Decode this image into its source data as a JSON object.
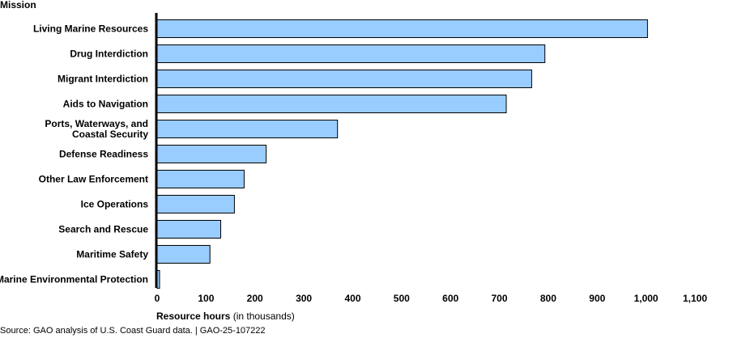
{
  "chart_data": {
    "type": "bar",
    "orientation": "horizontal",
    "categories": [
      "Living Marine Resources",
      "Drug Interdiction",
      "Migrant Interdiction",
      "Aids to Navigation",
      "Ports, Waterways, and Coastal Security",
      "Defense Readiness",
      "Other Law Enforcement",
      "Ice Operations",
      "Search and Rescue",
      "Maritime Safety",
      "Marine Environmental Protection"
    ],
    "category_label_lines": [
      [
        "Living Marine Resources"
      ],
      [
        "Drug Interdiction"
      ],
      [
        "Migrant Interdiction"
      ],
      [
        "Aids to Navigation"
      ],
      [
        "Ports, Waterways, and",
        "Coastal Security"
      ],
      [
        "Defense Readiness"
      ],
      [
        "Other Law Enforcement"
      ],
      [
        "Ice Operations"
      ],
      [
        "Search and Rescue"
      ],
      [
        "Maritime Safety"
      ],
      [
        "Marine Environmental Protection"
      ]
    ],
    "values": [
      1003,
      793,
      766,
      714,
      369,
      223,
      178,
      158,
      130,
      108,
      5
    ],
    "xlim": [
      0,
      1100
    ],
    "xticks": [
      0,
      100,
      200,
      300,
      400,
      500,
      600,
      700,
      800,
      900,
      1000,
      1100
    ],
    "xtick_labels": [
      "0",
      "100",
      "200",
      "300",
      "400",
      "500",
      "600",
      "700",
      "800",
      "900",
      "1,000",
      "1,100"
    ],
    "category_axis_title": "Mission",
    "xlabel": "Resource hours",
    "xlabel_unit": "(in thousands)",
    "grid": false,
    "legend": "none",
    "bar_color": "#99ccff",
    "bar_edge_color": "#000000"
  },
  "source_note": "Source: GAO analysis of U.S. Coast Guard data.  |  GAO-25-107222"
}
